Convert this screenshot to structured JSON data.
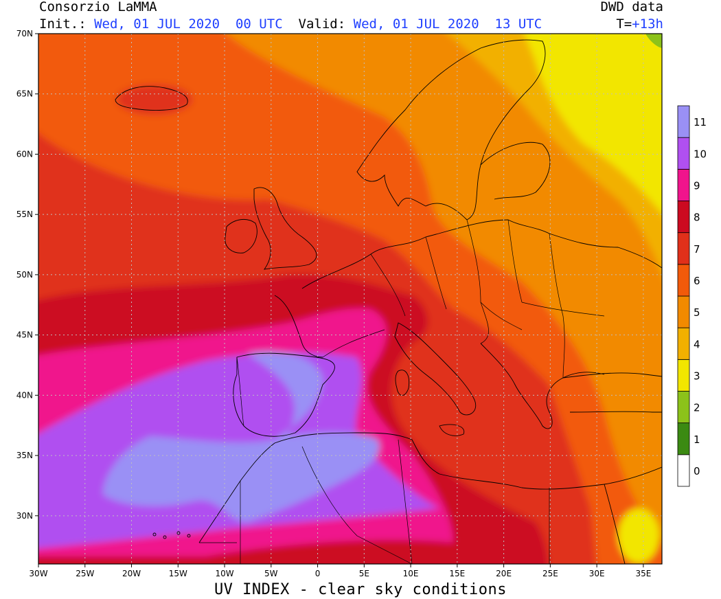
{
  "header": {
    "org": "Consorzio LaMMA",
    "source": "DWD data",
    "init_label": "Init.:",
    "init_value": "Wed, 01 JUL 2020  00 UTC",
    "valid_label": "Valid:",
    "valid_value": "Wed, 01 JUL 2020  13 UTC",
    "lead_label": "T=",
    "lead_value": "+13h"
  },
  "footer": {
    "title": "UV INDEX - clear sky conditions"
  },
  "map": {
    "lon_range": [
      -30,
      37
    ],
    "lat_range": [
      26,
      70
    ],
    "lat_ticks": [
      "30N",
      "35N",
      "40N",
      "45N",
      "50N",
      "55N",
      "60N",
      "65N",
      "70N"
    ],
    "lon_ticks": [
      "30W",
      "25W",
      "20W",
      "15W",
      "10W",
      "5W",
      "0",
      "5E",
      "10E",
      "15E",
      "20E",
      "25E",
      "30E",
      "35E"
    ],
    "grid": "dotted",
    "coastlines": true
  },
  "legend": {
    "placement": "right",
    "levels": [
      {
        "label": "0",
        "color": "#ffffff"
      },
      {
        "label": "1",
        "color": "#3b8a12"
      },
      {
        "label": "2",
        "color": "#8cc21a"
      },
      {
        "label": "3",
        "color": "#f2e600"
      },
      {
        "label": "4",
        "color": "#f2b000"
      },
      {
        "label": "5",
        "color": "#f28a00"
      },
      {
        "label": "6",
        "color": "#f25a0a"
      },
      {
        "label": "7",
        "color": "#e0301a"
      },
      {
        "label": "8",
        "color": "#cc0a20"
      },
      {
        "label": "9",
        "color": "#f0148c"
      },
      {
        "label": "10",
        "color": "#b050f0"
      },
      {
        "label": "11",
        "color": "#9a90f5"
      }
    ]
  }
}
